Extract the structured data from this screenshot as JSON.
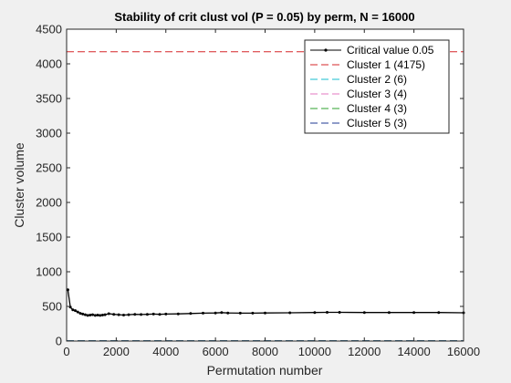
{
  "chart_data": {
    "type": "line",
    "title": "Stability of crit clust vol (P = 0.05) by perm, N = 16000",
    "xlabel": "Permutation number",
    "ylabel": "Cluster volume",
    "xlim": [
      0,
      16000
    ],
    "ylim": [
      0,
      4500
    ],
    "xticks": [
      0,
      2000,
      4000,
      6000,
      8000,
      10000,
      12000,
      14000,
      16000
    ],
    "xtick_labels": [
      "0",
      "2000",
      "4000",
      "6000",
      "8000",
      "10000",
      "12000",
      "14000",
      "16000"
    ],
    "yticks": [
      0,
      500,
      1000,
      1500,
      2000,
      2500,
      3000,
      3500,
      4000,
      4500
    ],
    "ytick_labels": [
      "0",
      "500",
      "1000",
      "1500",
      "2000",
      "2500",
      "3000",
      "3500",
      "4000",
      "4500"
    ],
    "grid": false,
    "legend_position": "top-right",
    "series": [
      {
        "name": "Critical value 0.05",
        "style": "solid-dotted",
        "color": "#000000",
        "x": [
          50,
          150,
          250,
          350,
          450,
          550,
          650,
          750,
          850,
          950,
          1050,
          1150,
          1250,
          1350,
          1450,
          1550,
          1700,
          1900,
          2100,
          2300,
          2500,
          2750,
          3000,
          3250,
          3500,
          3750,
          4000,
          4500,
          5000,
          5500,
          6000,
          6250,
          6500,
          7000,
          7500,
          8000,
          9000,
          10000,
          10500,
          11000,
          12000,
          13000,
          14000,
          15000,
          16000
        ],
        "y": [
          740,
          490,
          450,
          440,
          420,
          400,
          390,
          380,
          370,
          375,
          380,
          370,
          375,
          370,
          375,
          380,
          395,
          385,
          380,
          375,
          380,
          385,
          383,
          385,
          390,
          385,
          390,
          392,
          398,
          402,
          405,
          410,
          405,
          402,
          402,
          405,
          408,
          412,
          414,
          414,
          412,
          412,
          412,
          412,
          408
        ]
      },
      {
        "name": "Cluster 1 (4175)",
        "style": "dashed",
        "color": "#d62728",
        "x": [
          0,
          16000
        ],
        "y": [
          4175,
          4175
        ]
      },
      {
        "name": "Cluster 2 (6)",
        "style": "dashed",
        "color": "#17becf",
        "x": [
          0,
          16000
        ],
        "y": [
          6,
          6
        ]
      },
      {
        "name": "Cluster 3 (4)",
        "style": "dashed",
        "color": "#e377c2",
        "x": [
          0,
          16000
        ],
        "y": [
          4,
          4
        ]
      },
      {
        "name": "Cluster 4 (3)",
        "style": "dashed",
        "color": "#2ca02c",
        "x": [
          0,
          16000
        ],
        "y": [
          3,
          3
        ]
      },
      {
        "name": "Cluster 5 (3)",
        "style": "dashed",
        "color": "#1f3a93",
        "x": [
          0,
          16000
        ],
        "y": [
          3,
          3
        ]
      }
    ]
  }
}
